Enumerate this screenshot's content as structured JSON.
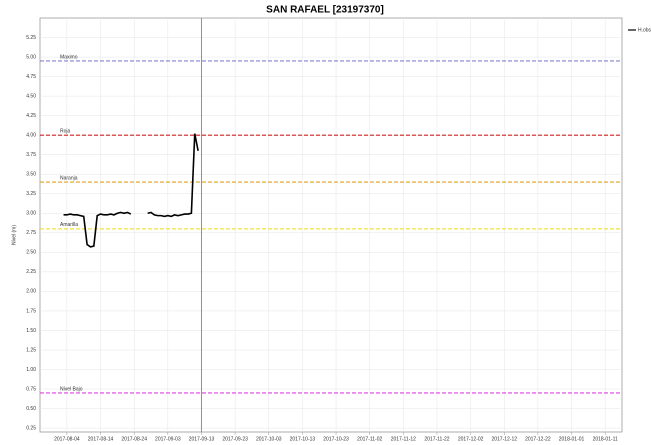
{
  "chart_data": {
    "type": "line",
    "title": "SAN RAFAEL [23197370]",
    "y_label": "Nivel (m)",
    "x": [
      "2017-08-03",
      "2017-08-04",
      "2017-08-05",
      "2017-08-06",
      "2017-08-07",
      "2017-08-08",
      "2017-08-09",
      "2017-08-10",
      "2017-08-11",
      "2017-08-12",
      "2017-08-13",
      "2017-08-14",
      "2017-08-15",
      "2017-08-16",
      "2017-08-17",
      "2017-08-18",
      "2017-08-19",
      "2017-08-20",
      "2017-08-21",
      "2017-08-22",
      "2017-08-23",
      "2017-08-24",
      "2017-08-25",
      "2017-08-26",
      "2017-08-27",
      "2017-08-28",
      "2017-08-29",
      "2017-08-30",
      "2017-08-31",
      "2017-09-01",
      "2017-09-02",
      "2017-09-03",
      "2017-09-04",
      "2017-09-05",
      "2017-09-06",
      "2017-09-07",
      "2017-09-08",
      "2017-09-09",
      "2017-09-10",
      "2017-09-11",
      "2017-09-12"
    ],
    "series": [
      {
        "name": "H.obs",
        "color": "#000000",
        "values": [
          2.98,
          2.98,
          2.99,
          2.98,
          2.98,
          2.97,
          2.96,
          2.6,
          2.57,
          2.58,
          2.97,
          2.99,
          2.98,
          2.98,
          2.99,
          2.98,
          3.0,
          3.01,
          3.0,
          3.01,
          2.99,
          null,
          null,
          null,
          null,
          3.0,
          3.01,
          2.98,
          2.97,
          2.97,
          2.96,
          2.97,
          2.96,
          2.98,
          2.97,
          2.98,
          2.99,
          2.99,
          3.0,
          4.02,
          3.8
        ]
      }
    ],
    "thresholds": [
      {
        "name": "Maximo",
        "value": 4.95,
        "color": "#8080d0"
      },
      {
        "name": "Roja",
        "value": 4.0,
        "color": "#d02020"
      },
      {
        "name": "Naranja",
        "value": 3.4,
        "color": "#e0a020"
      },
      {
        "name": "Amarilla",
        "value": 2.8,
        "color": "#f0e040"
      },
      {
        "name": "Nivel Bajo",
        "value": 0.7,
        "color": "#e040e0"
      }
    ],
    "vline": {
      "x": "2017-09-13",
      "color": "#ff6060"
    },
    "xlim": [
      "2017-07-27",
      "2018-01-16"
    ],
    "xticks": [
      "2017-08-04",
      "2017-08-14",
      "2017-08-24",
      "2017-09-03",
      "2017-09-13",
      "2017-09-23",
      "2017-10-03",
      "2017-10-13",
      "2017-10-23",
      "2017-11-02",
      "2017-11-12",
      "2017-11-22",
      "2017-12-02",
      "2017-12-12",
      "2017-12-22",
      "2018-01-01",
      "2018-01-11"
    ],
    "ylim": [
      0.2,
      5.5
    ],
    "yticks": [
      {
        "value": 0.25,
        "label": "0.25"
      },
      {
        "value": 0.5,
        "label": "0.50"
      },
      {
        "value": 0.75,
        "label": "0.75"
      },
      {
        "value": 1,
        "label": "1.00"
      },
      {
        "value": 1.25,
        "label": "1.25"
      },
      {
        "value": 1.5,
        "label": "1.50"
      },
      {
        "value": 1.75,
        "label": "1.75"
      },
      {
        "value": 2,
        "label": "2.00"
      },
      {
        "value": 2.25,
        "label": "2.25"
      },
      {
        "value": 2.5,
        "label": "2.50"
      },
      {
        "value": 2.75,
        "label": "2.75"
      },
      {
        "value": 3,
        "label": "3.00"
      },
      {
        "value": 3.25,
        "label": "3.25"
      },
      {
        "value": 3.5,
        "label": "3.50"
      },
      {
        "value": 3.75,
        "label": "3.75"
      },
      {
        "value": 4,
        "label": "4.00"
      },
      {
        "value": 4.25,
        "label": "4.25"
      },
      {
        "value": 4.5,
        "label": "4.50"
      },
      {
        "value": 4.75,
        "label": "4.75"
      },
      {
        "value": 5,
        "label": "5.00"
      },
      {
        "value": 5.25,
        "label": "5.25"
      }
    ],
    "grid": true,
    "legend": "top-right"
  }
}
